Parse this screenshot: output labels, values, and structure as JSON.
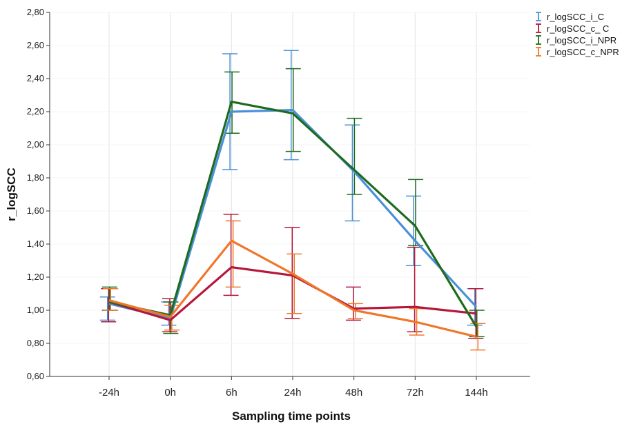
{
  "chart_data": {
    "type": "line",
    "xlabel": "Sampling time points",
    "ylabel": "r_logSCC",
    "categories": [
      "-24h",
      "0h",
      "6h",
      "24h",
      "48h",
      "72h",
      "144h"
    ],
    "ylim": [
      0.6,
      2.8
    ],
    "yticks": [
      "0,60",
      "0,80",
      "1,00",
      "1,20",
      "1,40",
      "1,60",
      "1,80",
      "2,00",
      "2,20",
      "2,40",
      "2,60",
      "2,80"
    ],
    "grid": "vertical",
    "legend_position": "top-right",
    "series": [
      {
        "name": "r_logSCC_i_C",
        "color": "#4a90d9",
        "values": [
          1.04,
          0.95,
          2.2,
          2.21,
          1.84,
          1.42,
          1.02
        ],
        "lower": [
          0.94,
          0.91,
          1.85,
          1.91,
          1.54,
          1.27,
          0.91
        ],
        "upper": [
          1.08,
          1.05,
          2.55,
          2.57,
          2.12,
          1.69,
          1.13
        ]
      },
      {
        "name": "r_logSCC_c_ C",
        "color": "#b5173a",
        "values": [
          1.05,
          0.94,
          1.26,
          1.21,
          1.01,
          1.02,
          0.98
        ],
        "lower": [
          0.93,
          0.87,
          1.09,
          0.95,
          0.94,
          0.87,
          0.83
        ],
        "upper": [
          1.13,
          1.07,
          1.58,
          1.5,
          1.14,
          1.38,
          1.13
        ]
      },
      {
        "name": "r_logSCC_i_NPR",
        "color": "#1e6b1e",
        "values": [
          1.05,
          0.97,
          2.26,
          2.19,
          1.85,
          1.51,
          0.9
        ],
        "lower": [
          1.0,
          0.86,
          2.07,
          1.96,
          1.7,
          1.39,
          0.84
        ],
        "upper": [
          1.14,
          1.05,
          2.44,
          2.46,
          2.16,
          1.79,
          1.0
        ]
      },
      {
        "name": "r_logSCC_c_NPR",
        "color": "#f0772a",
        "values": [
          1.06,
          0.96,
          1.42,
          1.22,
          1.0,
          0.93,
          0.84
        ],
        "lower": [
          1.0,
          0.88,
          1.14,
          0.98,
          0.95,
          0.85,
          0.76
        ],
        "upper": [
          1.13,
          1.03,
          1.54,
          1.34,
          1.04,
          1.01,
          0.92
        ]
      }
    ]
  }
}
